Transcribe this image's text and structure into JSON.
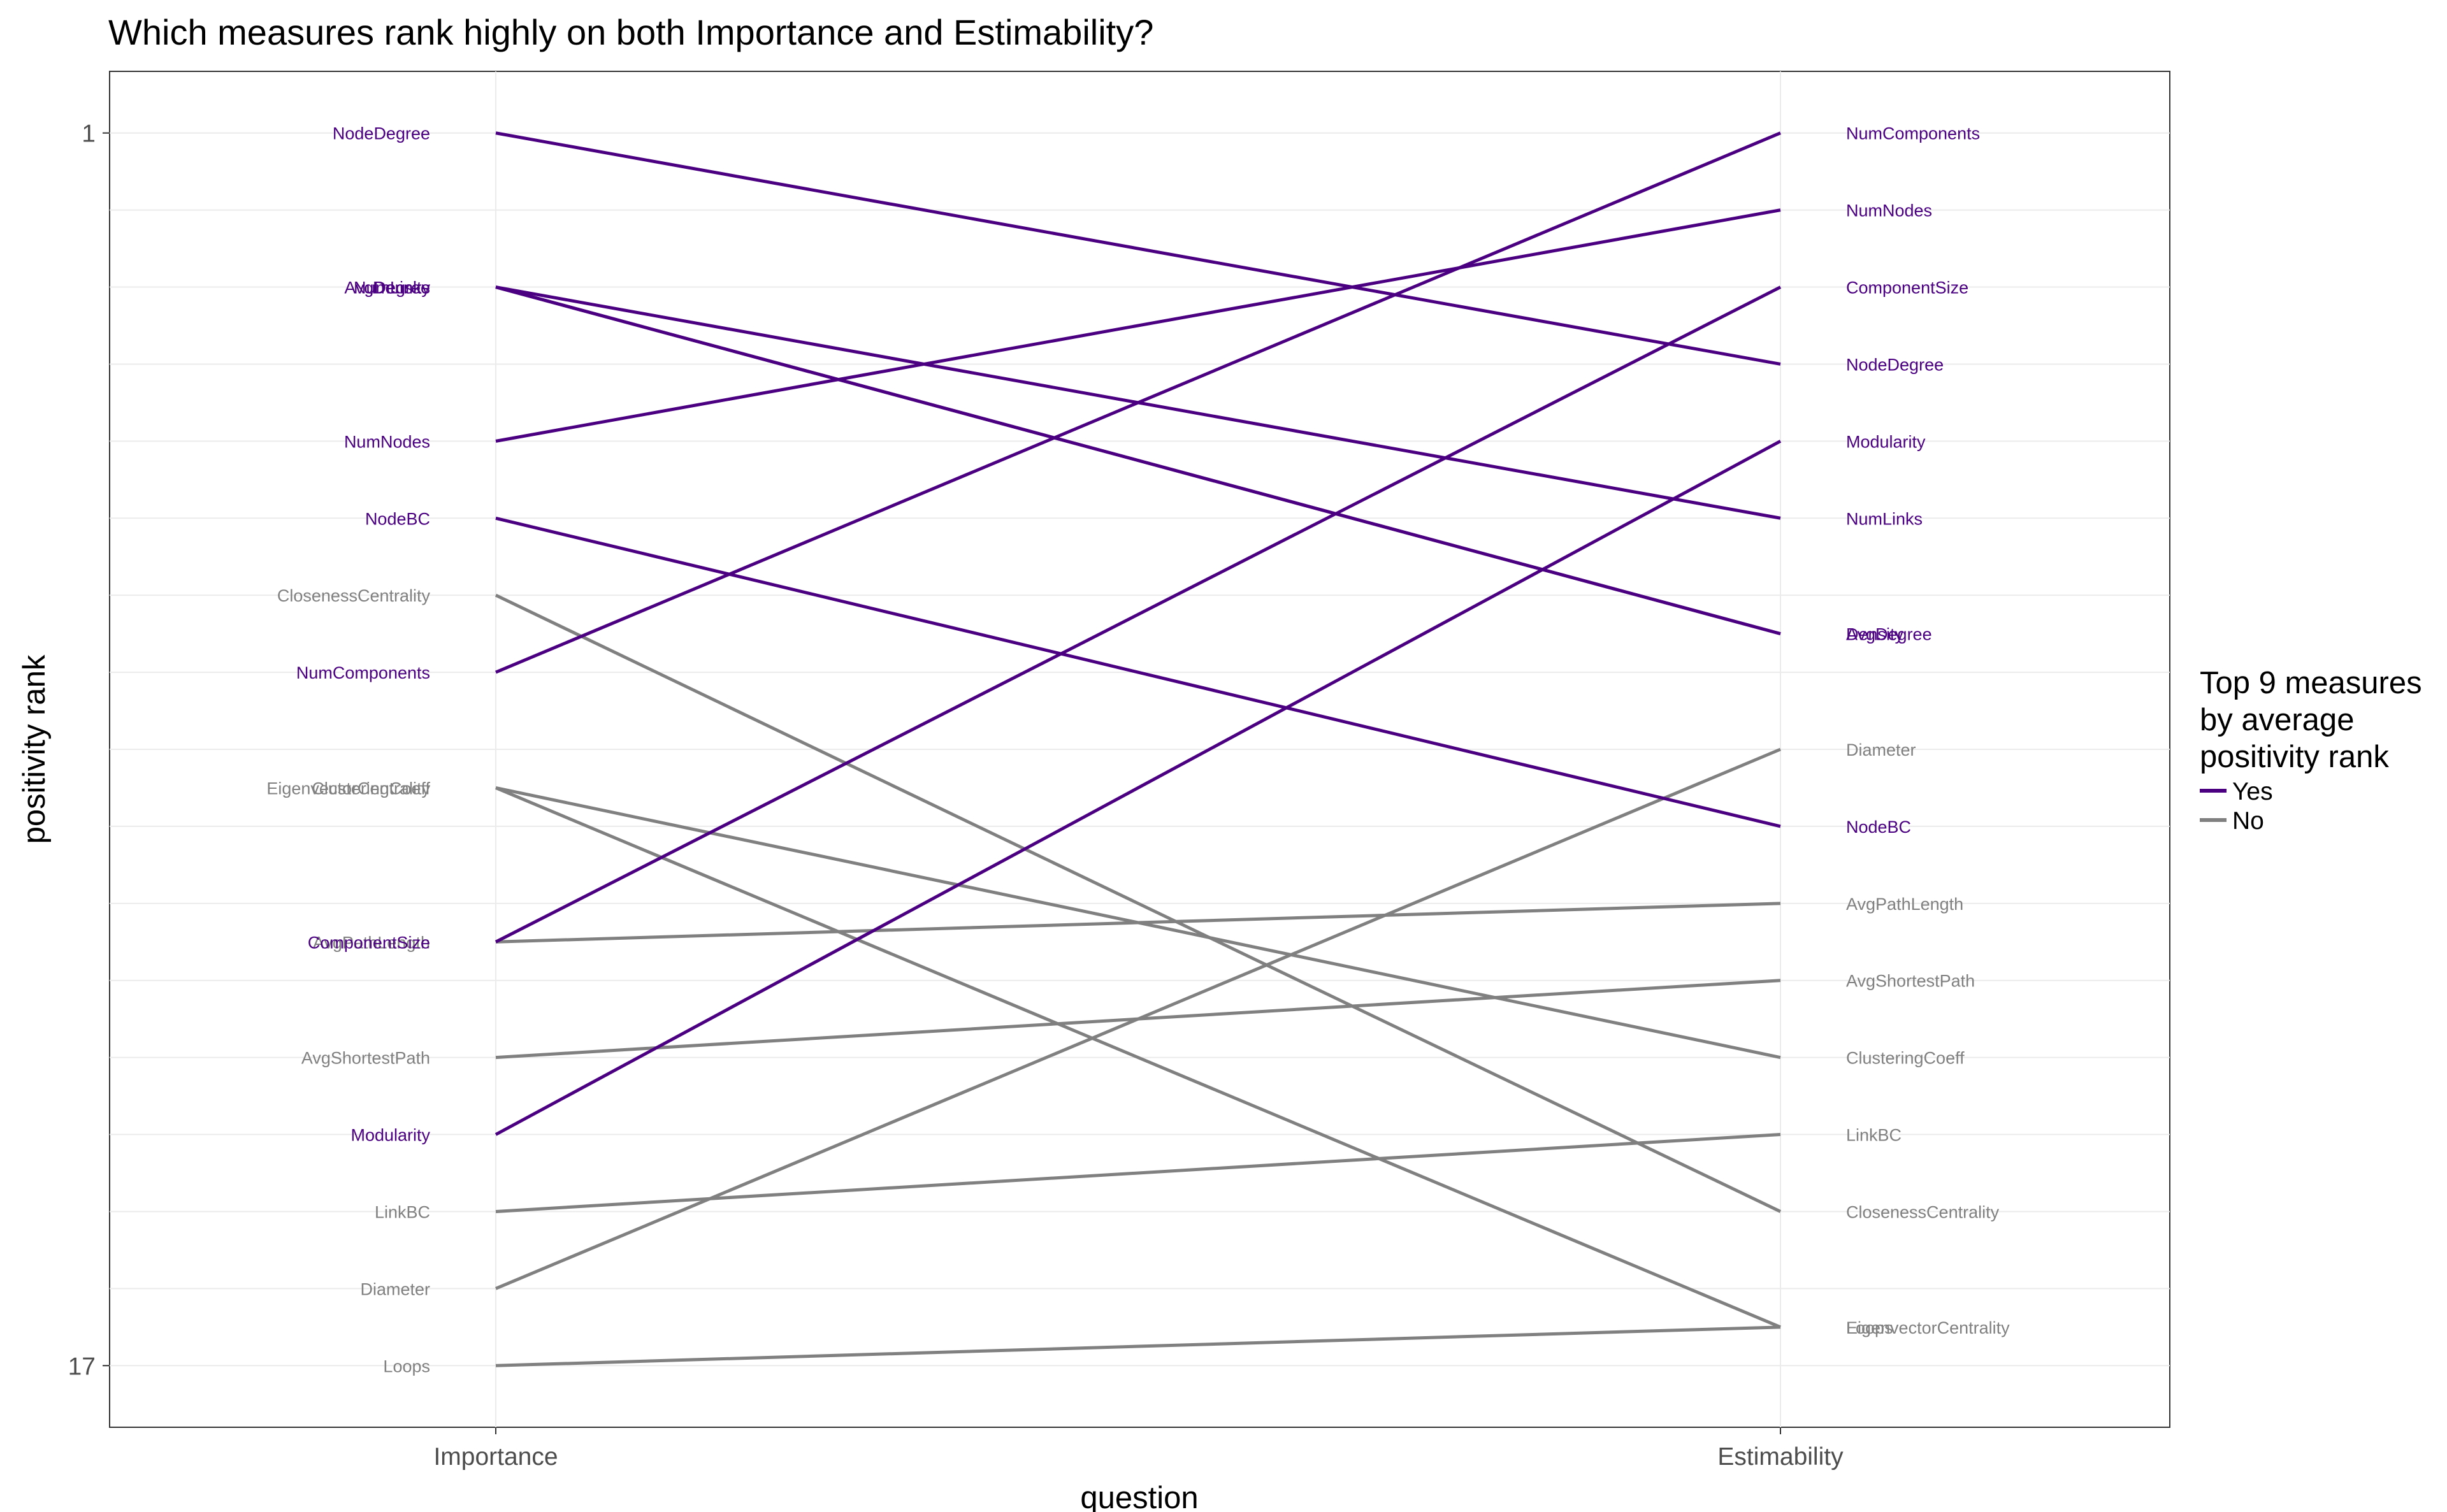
{
  "chart_data": {
    "type": "line",
    "title": "Which measures rank highly on both Importance and Estimability?",
    "xlabel": "question",
    "ylabel": "positivity rank",
    "x": [
      "Importance",
      "Estimability"
    ],
    "y_ticks": [
      "1",
      "17"
    ],
    "ylim": [
      0.2,
      17.8
    ],
    "y_reversed": true,
    "grid": true,
    "legend": {
      "title_lines": [
        "Top 9 measures",
        "by average",
        "positivity rank"
      ],
      "position": "right",
      "entries": [
        {
          "label": "Yes",
          "color": "#4b0082"
        },
        {
          "label": "No",
          "color": "#808080"
        }
      ]
    },
    "series": [
      {
        "name": "NodeDegree",
        "values": [
          1,
          4
        ],
        "top9": "Yes"
      },
      {
        "name": "NumLinks",
        "values": [
          3,
          6
        ],
        "top9": "Yes"
      },
      {
        "name": "AvgDegree",
        "values": [
          3,
          7.5
        ],
        "top9": "Yes"
      },
      {
        "name": "Density",
        "values": [
          3,
          7.5
        ],
        "top9": "Yes"
      },
      {
        "name": "NumNodes",
        "values": [
          5,
          2
        ],
        "top9": "Yes"
      },
      {
        "name": "NodeBC",
        "values": [
          6,
          10
        ],
        "top9": "Yes"
      },
      {
        "name": "NumComponents",
        "values": [
          8,
          1
        ],
        "top9": "Yes"
      },
      {
        "name": "ComponentSize",
        "values": [
          11.5,
          3
        ],
        "top9": "Yes"
      },
      {
        "name": "Modularity",
        "values": [
          14,
          5
        ],
        "top9": "Yes"
      },
      {
        "name": "ClosenessCentrality",
        "values": [
          7,
          15
        ],
        "top9": "No"
      },
      {
        "name": "ClusteringCoeff",
        "values": [
          9.5,
          13
        ],
        "top9": "No"
      },
      {
        "name": "EigenvectorCentrality",
        "values": [
          9.5,
          16.5
        ],
        "top9": "No"
      },
      {
        "name": "AvgPathLength",
        "values": [
          11.5,
          11
        ],
        "top9": "No"
      },
      {
        "name": "AvgShortestPath",
        "values": [
          13,
          12
        ],
        "top9": "No"
      },
      {
        "name": "LinkBC",
        "values": [
          15,
          14
        ],
        "top9": "No"
      },
      {
        "name": "Diameter",
        "values": [
          16,
          9
        ],
        "top9": "No"
      },
      {
        "name": "Loops",
        "values": [
          17,
          16.5
        ],
        "top9": "No"
      }
    ]
  }
}
